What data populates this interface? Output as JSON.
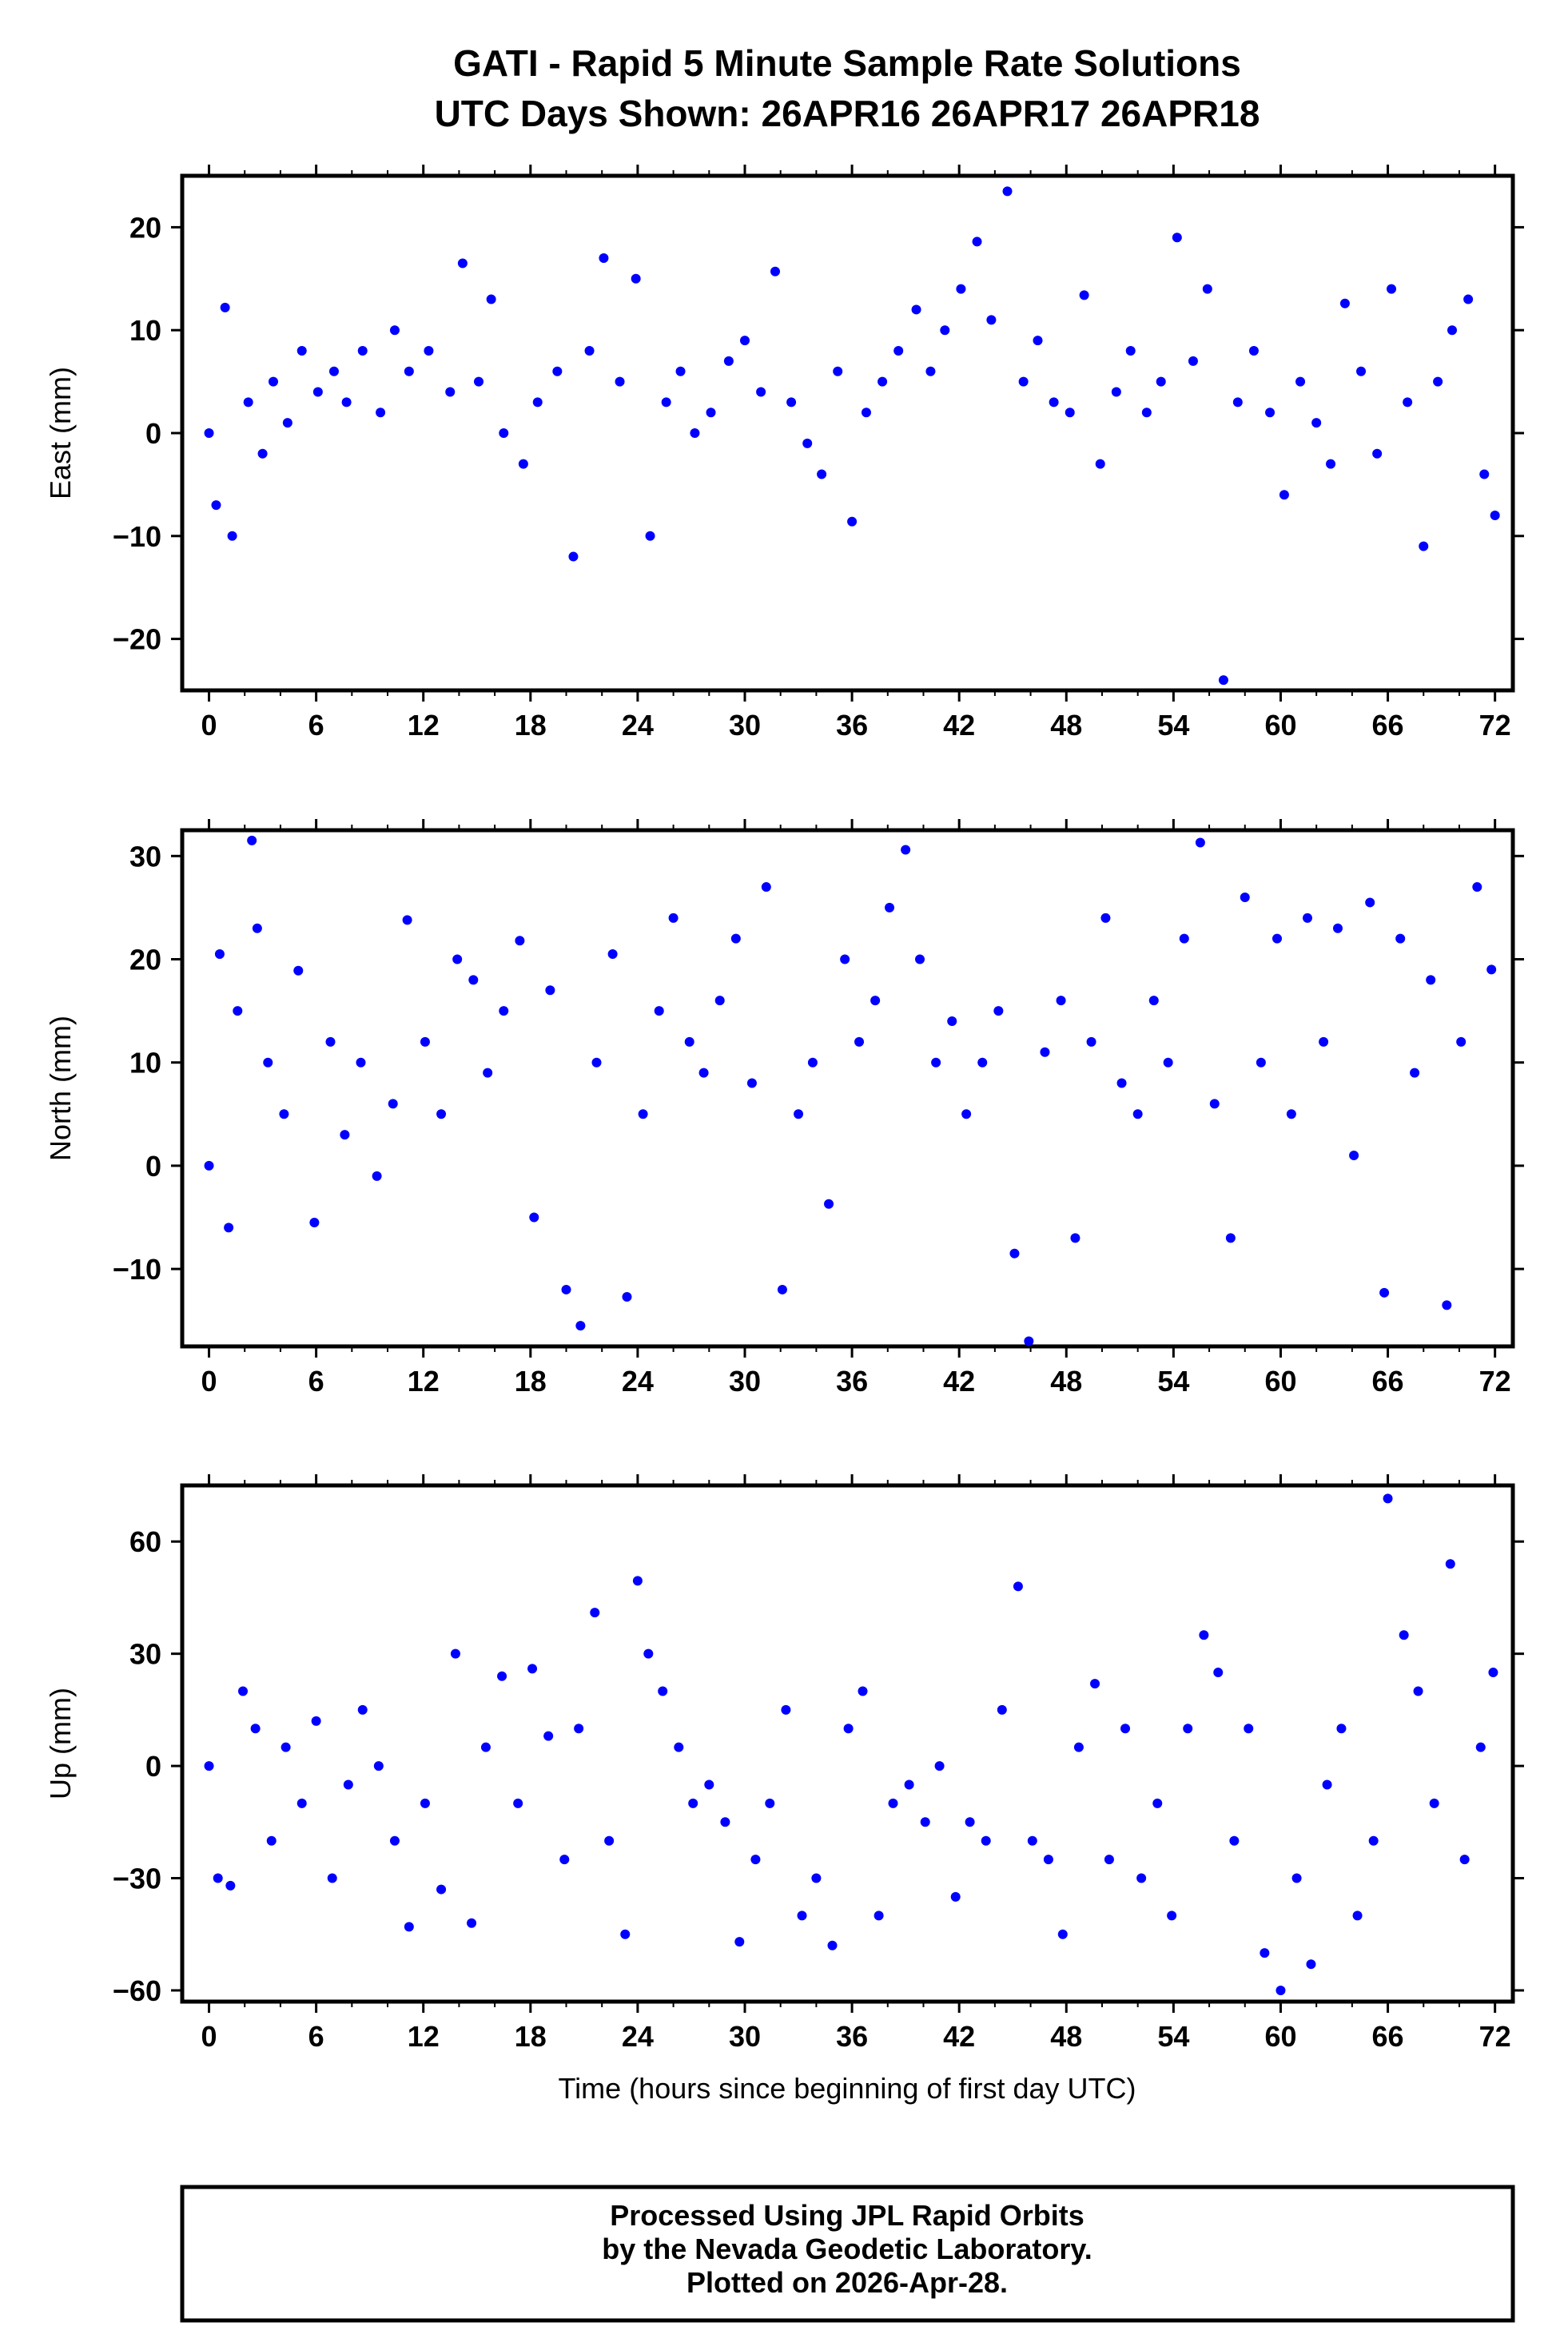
{
  "title_line1": "GATI - Rapid 5 Minute Sample Rate Solutions",
  "title_line2": "UTC Days Shown:  26APR16 26APR17 26APR18",
  "xlabel": "Time (hours since beginning of first day UTC)",
  "credits": [
    "Processed Using JPL Rapid Orbits",
    "by the Nevada Geodetic Laboratory.",
    "Plotted on 2026-Apr-28."
  ],
  "colors": {
    "points": "#0000ff",
    "frame": "#000000"
  },
  "chart_data": [
    {
      "type": "scatter",
      "ylabel": "East (mm)",
      "xlim": [
        -1.5,
        73
      ],
      "ylim": [
        -25,
        25
      ],
      "xticks": [
        0,
        6,
        12,
        18,
        24,
        30,
        36,
        42,
        48,
        54,
        60,
        66,
        72
      ],
      "yticks": [
        -20,
        -10,
        0,
        10,
        20
      ],
      "grid": false,
      "series": [
        {
          "x": [
            0,
            0.4,
            0.9,
            1.3,
            2.2,
            3,
            3.6,
            4.4,
            5.2,
            6.1,
            7,
            7.7,
            8.6,
            9.6,
            10.4,
            11.2,
            12.3,
            13.5,
            14.2,
            15.1,
            15.8,
            16.5,
            17.6,
            18.4,
            19.5,
            20.4,
            21.3,
            22.1,
            23,
            23.9,
            24.7,
            25.6,
            26.4,
            27.2,
            28.1,
            29.1,
            30,
            30.9,
            31.7,
            32.6,
            33.5,
            34.3,
            35.2,
            36,
            36.8,
            37.7,
            38.6,
            39.6,
            40.4,
            41.2,
            42.1,
            43,
            43.8,
            44.7,
            45.6,
            46.4,
            47.3,
            48.2,
            49,
            49.9,
            50.8,
            51.6,
            52.5,
            53.3,
            54.2,
            55.1,
            55.9,
            56.8,
            57.6,
            58.5,
            59.4,
            60.2,
            61.1,
            62,
            62.8,
            63.6,
            64.5,
            65.4,
            66.2,
            67.1,
            68,
            68.8,
            69.6,
            70.5,
            71.4,
            72
          ],
          "y": [
            0,
            -7,
            12.2,
            -10,
            3,
            -2,
            5,
            1,
            8,
            4,
            6,
            3,
            8,
            2,
            10,
            6,
            8,
            4,
            16.5,
            5,
            13,
            0,
            -3,
            3,
            6,
            -12,
            8,
            17,
            5,
            15,
            -10,
            3,
            6,
            0,
            2,
            7,
            9,
            4,
            15.7,
            3,
            -1,
            -4,
            6,
            -8.6,
            2,
            5,
            8,
            12,
            6,
            10,
            14,
            18.6,
            11,
            23.5,
            5,
            9,
            3,
            2,
            13.4,
            -3,
            4,
            8,
            2,
            5,
            19,
            7,
            14,
            -24,
            3,
            8,
            2,
            -6,
            5,
            1,
            -3,
            12.6,
            6,
            -2,
            14,
            3,
            -11,
            5,
            10,
            13,
            -4,
            -8
          ],
          "marker": "filled-circle"
        }
      ]
    },
    {
      "type": "scatter",
      "ylabel": "North (mm)",
      "xlim": [
        -1.5,
        73
      ],
      "ylim": [
        -17.5,
        32.5
      ],
      "xticks": [
        0,
        6,
        12,
        18,
        24,
        30,
        36,
        42,
        48,
        54,
        60,
        66,
        72
      ],
      "yticks": [
        -10,
        0,
        10,
        20,
        30
      ],
      "grid": false,
      "series": [
        {
          "x": [
            0,
            0.6,
            1.1,
            1.6,
            2.4,
            2.7,
            3.3,
            4.2,
            5,
            5.9,
            6.8,
            7.6,
            8.5,
            9.4,
            10.3,
            11.1,
            12.1,
            13,
            13.9,
            14.8,
            15.6,
            16.5,
            17.4,
            18.2,
            19.1,
            20,
            20.8,
            21.7,
            22.6,
            23.4,
            24.3,
            25.2,
            26,
            26.9,
            27.7,
            28.6,
            29.5,
            30.4,
            31.2,
            32.1,
            33,
            33.8,
            34.7,
            35.6,
            36.4,
            37.3,
            38.1,
            39,
            39.8,
            40.7,
            41.6,
            42.4,
            43.3,
            44.2,
            45.1,
            45.9,
            46.8,
            47.7,
            48.5,
            49.4,
            50.2,
            51.1,
            52,
            52.9,
            53.7,
            54.6,
            55.5,
            56.3,
            57.2,
            58,
            58.9,
            59.8,
            60.6,
            61.5,
            62.4,
            63.2,
            64.1,
            65,
            65.8,
            66.7,
            67.5,
            68.4,
            69.3,
            70.1,
            71,
            71.8
          ],
          "y": [
            0,
            20.5,
            -6,
            15,
            31.5,
            23,
            10,
            5,
            18.9,
            -5.5,
            12,
            3,
            10,
            -1,
            6,
            23.8,
            12,
            5,
            20,
            18,
            9,
            15,
            21.8,
            -5,
            17,
            -12,
            -15.5,
            10,
            20.5,
            -12.7,
            5,
            15,
            24,
            12,
            9,
            16,
            22,
            8,
            27,
            -12,
            5,
            10,
            -3.7,
            20,
            12,
            16,
            25,
            30.6,
            20,
            10,
            14,
            5,
            10,
            15,
            -8.5,
            -17,
            11,
            16,
            -7,
            12,
            24,
            8,
            5,
            16,
            10,
            22,
            31.3,
            6,
            -7,
            26,
            10,
            22,
            5,
            24,
            12,
            23,
            1,
            25.5,
            -12.3,
            22,
            9,
            18,
            -13.5,
            12,
            27,
            19
          ],
          "marker": "filled-circle"
        }
      ]
    },
    {
      "type": "scatter",
      "ylabel": "Up (mm)",
      "xlim": [
        -1.5,
        73
      ],
      "ylim": [
        -63,
        75
      ],
      "xticks": [
        0,
        6,
        12,
        18,
        24,
        30,
        36,
        42,
        48,
        54,
        60,
        66,
        72
      ],
      "yticks": [
        -60,
        -30,
        0,
        30,
        60
      ],
      "grid": false,
      "series": [
        {
          "x": [
            0,
            0.5,
            1.2,
            1.9,
            2.6,
            3.5,
            4.3,
            5.2,
            6,
            6.9,
            7.8,
            8.6,
            9.5,
            10.4,
            11.2,
            12.1,
            13,
            13.8,
            14.7,
            15.5,
            16.4,
            17.3,
            18.1,
            19,
            19.9,
            20.7,
            21.6,
            22.4,
            23.3,
            24,
            24.6,
            25.4,
            26.3,
            27.1,
            28,
            28.9,
            29.7,
            30.6,
            31.4,
            32.3,
            33.2,
            34,
            34.9,
            35.8,
            36.6,
            37.5,
            38.3,
            39.2,
            40.1,
            40.9,
            41.8,
            42.6,
            43.5,
            44.4,
            45.3,
            46.1,
            47,
            47.8,
            48.7,
            49.6,
            50.4,
            51.3,
            52.2,
            53.1,
            53.9,
            54.8,
            55.7,
            56.5,
            57.4,
            58.2,
            59.1,
            60,
            60.9,
            61.7,
            62.6,
            63.4,
            64.3,
            65.2,
            66,
            66.9,
            67.7,
            68.6,
            69.5,
            70.3,
            71.2,
            71.9
          ],
          "y": [
            0,
            -30,
            -32,
            20,
            10,
            -20,
            5,
            -10,
            12,
            -30,
            -5,
            15,
            0,
            -20,
            -43,
            -10,
            -33,
            30,
            -42,
            5,
            24,
            -10,
            26,
            8,
            -25,
            10,
            41,
            -20,
            -45,
            49.5,
            30,
            20,
            5,
            -10,
            -5,
            -15,
            -47,
            -25,
            -10,
            15,
            -40,
            -30,
            -48,
            10,
            20,
            -40,
            -10,
            -5,
            -15,
            0,
            -35,
            -15,
            -20,
            15,
            48,
            -20,
            -25,
            -45,
            5,
            22,
            -25,
            10,
            -30,
            -10,
            -40,
            10,
            35,
            25,
            -20,
            10,
            -50,
            -60,
            -30,
            -53,
            -5,
            10,
            -40,
            -20,
            71.5,
            35,
            20,
            -10,
            54,
            -25,
            5,
            25
          ],
          "marker": "filled-circle"
        }
      ]
    }
  ]
}
